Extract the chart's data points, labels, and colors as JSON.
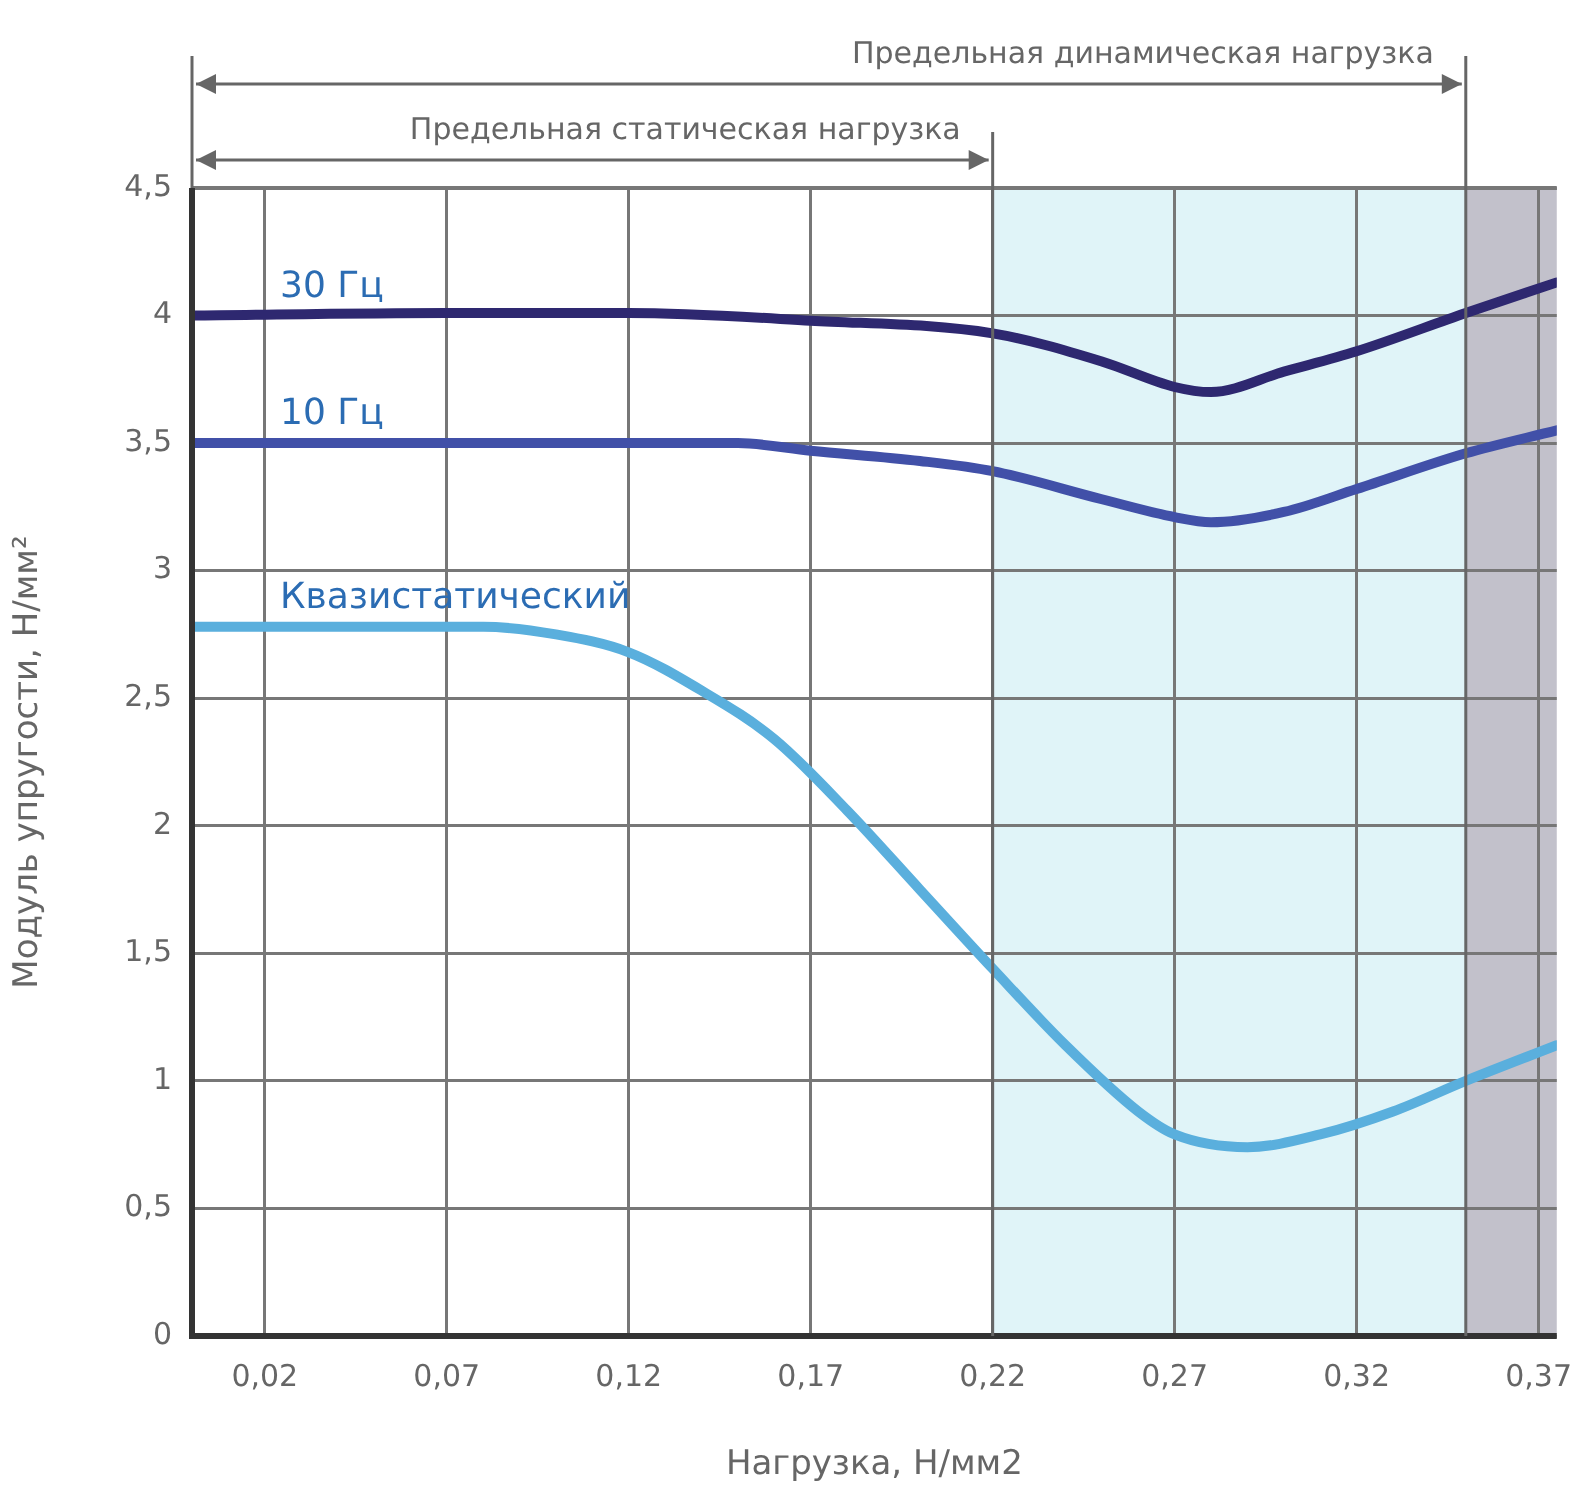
{
  "chart_data": {
    "type": "line",
    "xlabel": "Нагрузка, Н/мм2",
    "ylabel": "Модуль упругости, Н/мм²",
    "xlim": [
      0,
      0.375
    ],
    "xticks": [
      {
        "value": 0.02,
        "label": "0,02"
      },
      {
        "value": 0.07,
        "label": "0,07"
      },
      {
        "value": 0.12,
        "label": "0,12"
      },
      {
        "value": 0.17,
        "label": "0,17"
      },
      {
        "value": 0.22,
        "label": "0,22"
      },
      {
        "value": 0.27,
        "label": "0,27"
      },
      {
        "value": 0.32,
        "label": "0,32"
      },
      {
        "value": 0.37,
        "label": "0,37"
      }
    ],
    "ylim": [
      0,
      4.5
    ],
    "yticks": [
      0,
      {
        "value": 0.5,
        "label": "0,5"
      },
      1,
      {
        "value": 1.5,
        "label": "1,5"
      },
      2,
      {
        "value": 2.5,
        "label": "2,5"
      },
      3,
      {
        "value": 3.5,
        "label": "3,5"
      },
      4,
      {
        "value": 4.5,
        "label": "4,5"
      }
    ],
    "grid": true,
    "legend": false,
    "marker": "none",
    "line_style": "solid",
    "bands": [
      {
        "axis": "x",
        "from": 0.22,
        "to": 0.35,
        "color": "#e0f4f8"
      },
      {
        "axis": "x",
        "from": 0.35,
        "to": 0.375,
        "color": "#c2c1cb"
      }
    ],
    "ref_lines": [
      {
        "axis": "x",
        "value": 0.35,
        "label": "Предельная динамическая нагрузка",
        "color": "#666666"
      },
      {
        "axis": "x",
        "value": 0.22,
        "label": "Предельная статическая нагрузка",
        "color": "#666666"
      }
    ],
    "series": [
      {
        "name": "30 Гц",
        "color": "#2e2870",
        "x": [
          0,
          0.07,
          0.12,
          0.17,
          0.22,
          0.25,
          0.27,
          0.28,
          0.3,
          0.32,
          0.35,
          0.375
        ],
        "values": [
          4.0,
          4.01,
          4.01,
          3.98,
          3.93,
          3.82,
          3.72,
          3.7,
          3.78,
          3.86,
          4.01,
          4.13
        ]
      },
      {
        "name": "10 Гц",
        "color": "#4150a8",
        "x": [
          0,
          0.07,
          0.12,
          0.15,
          0.17,
          0.2,
          0.22,
          0.25,
          0.27,
          0.28,
          0.3,
          0.32,
          0.35,
          0.375
        ],
        "values": [
          3.5,
          3.5,
          3.5,
          3.5,
          3.47,
          3.43,
          3.39,
          3.28,
          3.21,
          3.19,
          3.23,
          3.32,
          3.46,
          3.55
        ]
      },
      {
        "name": "Квазистатический",
        "color": "#5aafdd",
        "x": [
          0,
          0.04,
          0.08,
          0.1,
          0.12,
          0.14,
          0.16,
          0.18,
          0.2,
          0.22,
          0.24,
          0.26,
          0.27,
          0.29,
          0.31,
          0.33,
          0.35,
          0.375
        ],
        "values": [
          2.78,
          2.78,
          2.78,
          2.75,
          2.68,
          2.53,
          2.34,
          2.06,
          1.75,
          1.44,
          1.14,
          0.88,
          0.79,
          0.74,
          0.79,
          0.88,
          1.0,
          1.14
        ]
      }
    ]
  }
}
